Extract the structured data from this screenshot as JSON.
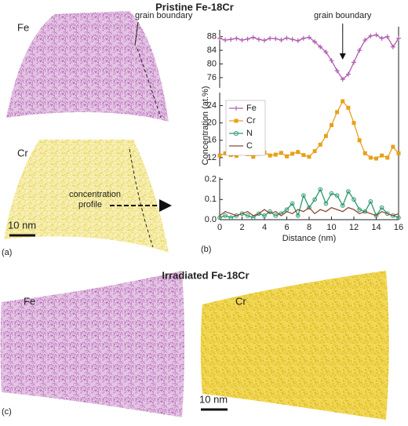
{
  "figure": {
    "pristine_title": "Pristine Fe-18Cr",
    "fe_label": "Fe",
    "cr_label": "Cr",
    "map_annotation": "grain boundary",
    "profile_label": [
      "concentration",
      "profile"
    ],
    "scale_bar": "10 nm",
    "panel_a": "(a)",
    "panel_b": "(b)",
    "irradiated_title": "Irradiated Fe-18Cr",
    "irr_fe_label": "Fe",
    "irr_cr_label": "Cr",
    "irr_scale_bar": "10 nm",
    "panel_c": "(c)"
  },
  "chart_data": {
    "type": "line",
    "xlabel": "Distance (nm)",
    "ylabel": "Concentration (at.%)",
    "annotation": "grain boundary",
    "x": [
      0,
      0.5,
      1,
      1.5,
      2,
      2.5,
      3,
      3.5,
      4,
      4.5,
      5,
      5.5,
      6,
      6.5,
      7,
      7.5,
      8,
      8.5,
      9,
      9.5,
      10,
      10.5,
      11,
      11.5,
      12,
      12.5,
      13,
      13.5,
      14,
      14.5,
      15,
      15.5,
      16
    ],
    "xlim": [
      0,
      16
    ],
    "xticks": [
      0,
      2,
      4,
      6,
      8,
      10,
      12,
      14,
      16
    ],
    "panels": [
      {
        "ylim": [
          73,
          90
        ],
        "yticks": [
          76,
          80,
          84,
          88
        ],
        "series": [
          {
            "name": "Fe",
            "color": "#b05cb0",
            "marker": "plus",
            "values": [
              87.5,
              87,
              87.2,
              87.5,
              87,
              87.3,
              87.8,
              87.2,
              86.9,
              87.5,
              87.4,
              87,
              87.6,
              87.2,
              86.8,
              87.5,
              87.8,
              86.5,
              85,
              83.5,
              81,
              78,
              75.5,
              77,
              80.5,
              84,
              87,
              88.2,
              88.5,
              87.5,
              88,
              85,
              87.5
            ]
          }
        ]
      },
      {
        "ylim": [
          10,
          27
        ],
        "yticks": [
          12,
          16,
          20,
          24
        ],
        "series": [
          {
            "name": "Cr",
            "color": "#e8a01a",
            "marker": "square",
            "values": [
              12.5,
              13,
              12.6,
              12.4,
              13,
              12.8,
              12.2,
              12.9,
              13.2,
              12.5,
              12.7,
              13.1,
              12.3,
              12.9,
              13.3,
              12.6,
              12.2,
              13.5,
              15,
              17,
              19.5,
              22.5,
              25,
              23.5,
              20,
              16,
              13,
              12,
              11.8,
              12.5,
              12,
              14.5,
              13
            ]
          }
        ]
      },
      {
        "ylim": [
          0,
          0.21
        ],
        "yticks": [
          {
            "value": 0,
            "label": "0.0"
          },
          {
            "value": 0.1,
            "label": "0.1"
          },
          {
            "value": 0.2,
            "label": "0.2"
          }
        ],
        "series": [
          {
            "name": "N",
            "color": "#2a9a6a",
            "marker": "circle",
            "values": [
              0.01,
              0.02,
              0.01,
              0.02,
              0.03,
              0.02,
              0.01,
              0.03,
              0.02,
              0.04,
              0.02,
              0.03,
              0.05,
              0.08,
              0.02,
              0.12,
              0.06,
              0.1,
              0.15,
              0.08,
              0.13,
              0.12,
              0.07,
              0.14,
              0.1,
              0.05,
              0.04,
              0.09,
              0.02,
              0.06,
              0.03,
              0.02,
              0.01
            ]
          },
          {
            "name": "C",
            "color": "#8a4a3a",
            "marker": "none",
            "values": [
              0.02,
              0.04,
              0.03,
              0.02,
              0.03,
              0.04,
              0.02,
              0.03,
              0.05,
              0.03,
              0.04,
              0.02,
              0.04,
              0.03,
              0.05,
              0.04,
              0.06,
              0.03,
              0.05,
              0.04,
              0.06,
              0.05,
              0.04,
              0.06,
              0.05,
              0.03,
              0.04,
              0.03,
              0.02,
              0.04,
              0.03,
              0.02,
              0.03
            ]
          }
        ]
      }
    ]
  }
}
